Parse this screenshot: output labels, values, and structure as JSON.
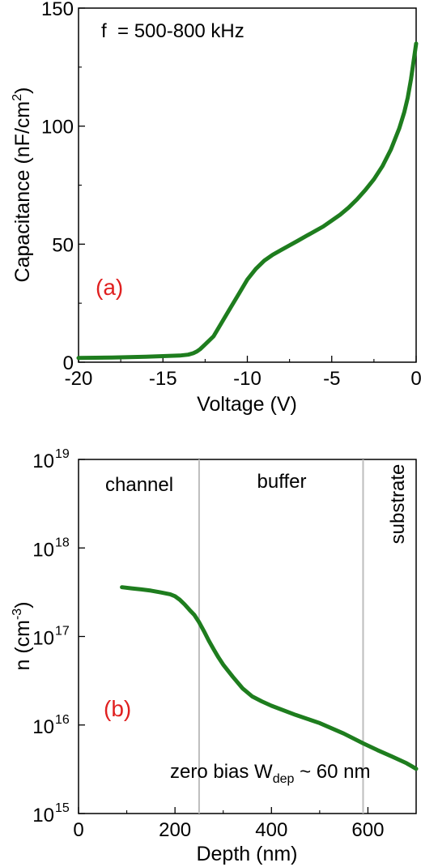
{
  "colors": {
    "curve": "#1e7d1e",
    "panel_label": "#e02020",
    "divider": "#bdbdbd",
    "axis": "#000000"
  },
  "chart_data": [
    {
      "type": "line",
      "panel_label": "(a)",
      "annotation": "f  = 500-800 kHz",
      "xlabel": "Voltage (V)",
      "ylabel_main": "Capacitance (nF/cm",
      "ylabel_sup": "2",
      "ylabel_tail": ")",
      "xlim": [
        -20,
        0
      ],
      "ylim": [
        0,
        150
      ],
      "xticks": [
        -20,
        -15,
        -10,
        -5,
        0
      ],
      "xtick_labels": [
        "-20",
        "-15",
        "-10",
        "-5",
        "0"
      ],
      "yticks": [
        0,
        50,
        100,
        150
      ],
      "ytick_labels": [
        "0",
        "50",
        "100",
        "150"
      ],
      "series": [
        {
          "x": [
            -20,
            -18,
            -16,
            -14,
            -13.5,
            -13.2,
            -13,
            -12.8,
            -12.5,
            -12,
            -11.5,
            -11,
            -10.5,
            -10,
            -9.5,
            -9,
            -8.5,
            -8,
            -7.5,
            -7,
            -6.5,
            -6,
            -5.5,
            -5,
            -4.5,
            -4,
            -3.5,
            -3,
            -2.5,
            -2,
            -1.5,
            -1,
            -0.7,
            -0.5,
            -0.3,
            -0.1,
            0
          ],
          "y": [
            1.8,
            2.0,
            2.3,
            2.8,
            3.2,
            3.8,
            4.5,
            5.5,
            7.5,
            11,
            17,
            23,
            29,
            35,
            39.5,
            43,
            45.5,
            47.5,
            49.5,
            51.5,
            53.5,
            55.5,
            57.5,
            60,
            62.5,
            65.5,
            69,
            73,
            77.5,
            83,
            90,
            99,
            106,
            112,
            120,
            130,
            135
          ]
        }
      ]
    },
    {
      "type": "line",
      "panel_label": "(b)",
      "annotation_main": "zero bias W",
      "annotation_sub": "dep",
      "annotation_tail": " ~ 60 nm",
      "regions": [
        "channel",
        "buffer",
        "substrate"
      ],
      "dividers": [
        250,
        590
      ],
      "xlabel": "Depth (nm)",
      "ylabel_main": "n (cm",
      "ylabel_sup": "-3",
      "ylabel_tail": ")",
      "xlim": [
        0,
        700
      ],
      "ylim": [
        1000000000000000.0,
        1e+19
      ],
      "y_scale": "log",
      "xticks": [
        0,
        200,
        400,
        600
      ],
      "xtick_labels": [
        "0",
        "200",
        "400",
        "600"
      ],
      "yticks": [
        1000000000000000.0,
        1e+16,
        1e+17,
        1e+18,
        1e+19
      ],
      "ytick_bases": [
        "10",
        "10",
        "10",
        "10",
        "10"
      ],
      "ytick_exps": [
        "15",
        "16",
        "17",
        "18",
        "19"
      ],
      "series": [
        {
          "x": [
            90,
            110,
            130,
            150,
            170,
            190,
            200,
            210,
            220,
            230,
            240,
            250,
            260,
            270,
            280,
            290,
            300,
            320,
            340,
            360,
            380,
            400,
            450,
            500,
            550,
            590,
            620,
            650,
            680,
            700
          ],
          "y": [
            3.6e+17,
            3.5e+17,
            3.4e+17,
            3.3e+17,
            3.15e+17,
            3e+17,
            2.85e+17,
            2.6e+17,
            2.3e+17,
            2e+17,
            1.75e+17,
            1.45e+17,
            1.15e+17,
            9e+16,
            7.2e+16,
            5.8e+16,
            4.8e+16,
            3.5e+16,
            2.6e+16,
            2.1e+16,
            1.85e+16,
            1.65e+16,
            1.3e+16,
            1.05e+16,
            8000000000000000.0,
            6200000000000000.0,
            5200000000000000.0,
            4400000000000000.0,
            3700000000000000.0,
            3200000000000000.0
          ]
        }
      ]
    }
  ]
}
